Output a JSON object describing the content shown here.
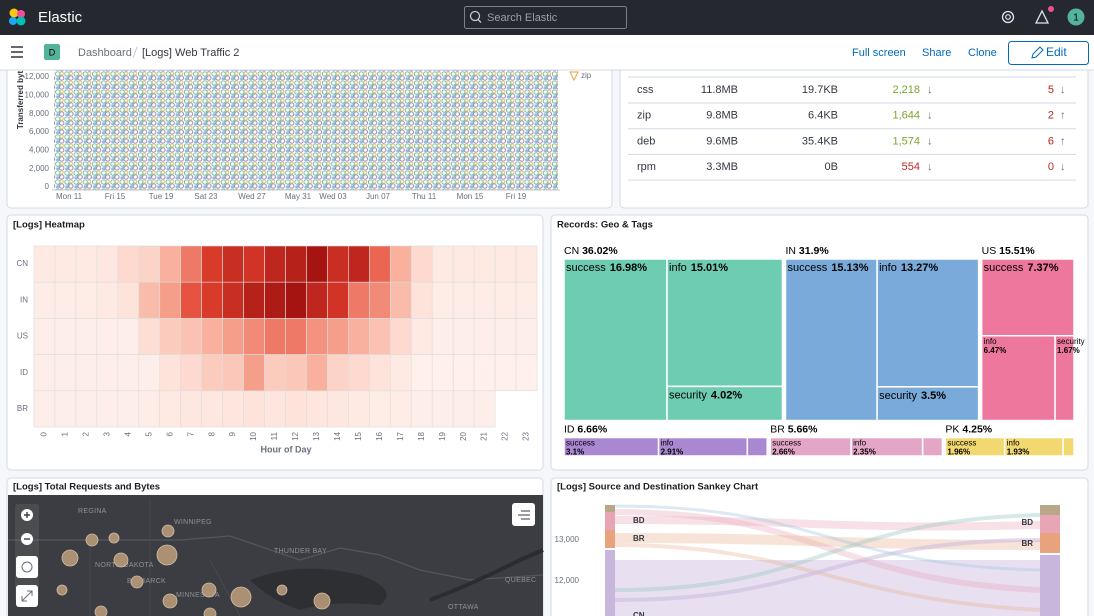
{
  "header": {
    "brand": "Elastic",
    "search_placeholder": "Search Elastic",
    "avatar": "1"
  },
  "nav": {
    "space_badge": "D",
    "breadcrumbs": [
      "Dashboard",
      "[Logs] Web Traffic 2"
    ],
    "actions": [
      "Full screen",
      "Share",
      "Clone"
    ],
    "edit": "Edit"
  },
  "scatter_panel": {
    "y_label": "Transferred byt",
    "yticks": [
      0,
      {
        "value": 2000,
        "label": "2,000"
      },
      {
        "value": 4000,
        "label": "4,000"
      },
      {
        "value": 6000,
        "label": "6,000"
      },
      {
        "value": 8000,
        "label": "8,000"
      },
      {
        "value": 10000,
        "label": "10,000"
      },
      {
        "value": 12000,
        "label": "12,000"
      }
    ],
    "x_labels": [
      "Mon 11",
      "Fri 15",
      "Tue 19",
      "Sat 23",
      "Wed 27",
      "May 31",
      "Wed 03",
      "Jun 07",
      "Thu 11",
      "Mon 15",
      "Fri 19"
    ],
    "legend": [
      "zip"
    ]
  },
  "table_panel": {
    "up_color": "#7aa52a",
    "down_color": "#bd271e",
    "rows": [
      {
        "extension": "css",
        "bytes": "11.8MB",
        "avg": "19.7KB",
        "count": "2,218",
        "count_trend": "↓",
        "count_status": "up",
        "errors": 5,
        "errors_trend": "↓"
      },
      {
        "extension": "zip",
        "bytes": "9.8MB",
        "avg": "6.4KB",
        "count": "1,644",
        "count_trend": "↓",
        "count_status": "up",
        "errors": 2,
        "errors_trend": "↑"
      },
      {
        "extension": "deb",
        "bytes": "9.6MB",
        "avg": "35.4KB",
        "count": "1,574",
        "count_trend": "↓",
        "count_status": "up",
        "errors": 6,
        "errors_trend": "↑"
      },
      {
        "extension": "rpm",
        "bytes": "3.3MB",
        "avg": "0B",
        "count": "554",
        "count_trend": "↓",
        "count_status": "down",
        "errors": 0,
        "errors_trend": "↓"
      }
    ]
  },
  "heatmap_panel": {
    "title": "[Logs] Heatmap",
    "x_label": "Hour of Day",
    "rows": [
      "CN",
      "IN",
      "US",
      "ID",
      "BR"
    ],
    "columns": [
      0,
      1,
      2,
      3,
      4,
      5,
      6,
      7,
      8,
      9,
      10,
      11,
      12,
      13,
      14,
      15,
      16,
      17,
      18,
      19,
      20,
      21,
      22,
      23
    ],
    "color_stops": [
      [
        0,
        "#fff5f1"
      ],
      [
        30,
        "#f9b09c"
      ],
      [
        60,
        "#e2412f"
      ],
      [
        100,
        "#9c0d0c"
      ]
    ],
    "values": [
      [
        5,
        5,
        5,
        6,
        12,
        15,
        30,
        45,
        65,
        75,
        70,
        80,
        85,
        95,
        75,
        80,
        50,
        30,
        12,
        5,
        5,
        5,
        5,
        5
      ],
      [
        4,
        4,
        4,
        5,
        8,
        25,
        35,
        55,
        65,
        75,
        85,
        90,
        95,
        80,
        70,
        45,
        40,
        25,
        8,
        4,
        4,
        4,
        4,
        4
      ],
      [
        3,
        3,
        3,
        3,
        3,
        10,
        18,
        22,
        30,
        35,
        40,
        45,
        45,
        38,
        35,
        30,
        22,
        12,
        5,
        3,
        3,
        3,
        3,
        3
      ],
      [
        3,
        3,
        3,
        3,
        3,
        3,
        8,
        12,
        18,
        20,
        35,
        18,
        20,
        30,
        15,
        12,
        8,
        5,
        2,
        2,
        2,
        2,
        2,
        2
      ],
      [
        3,
        3,
        3,
        3,
        3,
        4,
        5,
        6,
        6,
        7,
        8,
        7,
        8,
        7,
        6,
        5,
        4,
        4,
        3,
        3,
        3,
        3,
        null,
        null
      ]
    ]
  },
  "treemap_panel": {
    "title": "Records: Geo & Tags",
    "groups": [
      {
        "name": "CN",
        "value": 36.02,
        "value_label": "36.02%",
        "color": "#6dccb1",
        "children": [
          {
            "name": "success",
            "value": 16.98,
            "value_label": "16.98%"
          },
          {
            "name": "info",
            "value": 15.01,
            "value_label": "15.01%"
          },
          {
            "name": "security",
            "value": 4.02,
            "value_label": "4.02%"
          }
        ]
      },
      {
        "name": "IN",
        "value": 31.9,
        "value_label": "31.9%",
        "color": "#79aad9",
        "children": [
          {
            "name": "success",
            "value": 15.13,
            "value_label": "15.13%"
          },
          {
            "name": "info",
            "value": 13.27,
            "value_label": "13.27%"
          },
          {
            "name": "security",
            "value": 3.5,
            "value_label": "3.5%"
          }
        ]
      },
      {
        "name": "US",
        "value": 15.51,
        "value_label": "15.51%",
        "color": "#ee789d",
        "children": [
          {
            "name": "success",
            "value": 7.37,
            "value_label": "7.37%"
          },
          {
            "name": "info",
            "value": 6.47,
            "value_label": "6.47%"
          },
          {
            "name": "security",
            "value": 1.67,
            "value_label": "1.67%"
          }
        ]
      },
      {
        "name": "ID",
        "value": 6.66,
        "value_label": "6.66%",
        "color": "#a987d1",
        "children": [
          {
            "name": "success",
            "value": 3.1,
            "value_label": "3.1%"
          },
          {
            "name": "info",
            "value": 2.91,
            "value_label": "2.91%"
          },
          {
            "name": null,
            "value": 0.65
          }
        ]
      },
      {
        "name": "BR",
        "value": 5.66,
        "value_label": "5.66%",
        "color": "#e4a6c7",
        "children": [
          {
            "name": "success",
            "value": 2.66,
            "value_label": "2.66%"
          },
          {
            "name": "info",
            "value": 2.35,
            "value_label": "2.35%"
          },
          {
            "name": null,
            "value": 0.65
          }
        ]
      },
      {
        "name": "PK",
        "value": 4.25,
        "value_label": "4.25%",
        "color": "#f1d86f",
        "children": [
          {
            "name": "success",
            "value": 1.96,
            "value_label": "1.96%"
          },
          {
            "name": "info",
            "value": 1.93,
            "value_label": "1.93%"
          },
          {
            "name": null,
            "value": 0.36
          }
        ]
      }
    ]
  },
  "map_panel": {
    "title": "[Logs] Total Requests and Bytes",
    "places": [
      "REGINA",
      "WINNIPEG",
      "THUNDER BAY",
      "NORTH DAKOTA",
      "BISMARCK",
      "MINNESOTA",
      "OTTAWA",
      "QUEBEC"
    ]
  },
  "sankey_panel": {
    "title": "[Logs] Source and Destination Sankey Chart",
    "yticks": [
      {
        "value": 13000,
        "label": "13,000"
      },
      {
        "value": 12000,
        "label": "12,000"
      }
    ],
    "left_nodes": [
      "BD",
      "BR",
      "CN"
    ],
    "right_nodes": [
      "BD",
      "BR"
    ]
  }
}
